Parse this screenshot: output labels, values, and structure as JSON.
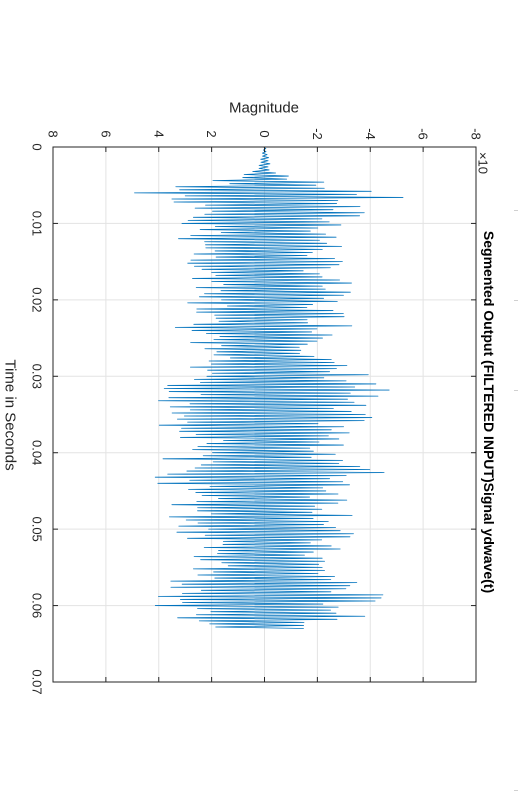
{
  "chart_data": {
    "type": "line",
    "orientation": "rotated-90-clockwise",
    "title": "Segmented Output (FILTERED INPUT)Signal ydwave(t)",
    "xlabel": "Time in Seconds",
    "ylabel": "Magnitude",
    "exponent_label": "×10",
    "xlim": [
      0,
      0.07
    ],
    "ylim": [
      -8,
      8
    ],
    "xticks": [
      "0",
      "0.01",
      "0.02",
      "0.03",
      "0.04",
      "0.05",
      "0.06",
      "0.07"
    ],
    "yticks": [
      "-8",
      "-6",
      "-4",
      "-2",
      "0",
      "2",
      "4",
      "6",
      "8"
    ],
    "grid": true,
    "legend": "none",
    "series": [
      {
        "color": "#0072BD",
        "t_start": 0.0,
        "t_end": 0.063,
        "sample_step": 0.0002,
        "peak_envelope": [
          {
            "t": 0.0,
            "v": 0.05
          },
          {
            "t": 0.003,
            "v": 0.3
          },
          {
            "t": 0.004,
            "v": 1.5
          },
          {
            "t": 0.005,
            "v": 2.8
          },
          {
            "t": 0.006,
            "v": 6.0
          },
          {
            "t": 0.0075,
            "v": 4.2
          },
          {
            "t": 0.01,
            "v": 3.6
          },
          {
            "t": 0.013,
            "v": 3.2
          },
          {
            "t": 0.015,
            "v": 3.0
          },
          {
            "t": 0.018,
            "v": 3.4
          },
          {
            "t": 0.021,
            "v": 3.0
          },
          {
            "t": 0.024,
            "v": 3.8
          },
          {
            "t": 0.027,
            "v": 2.6
          },
          {
            "t": 0.029,
            "v": 3.4
          },
          {
            "t": 0.031,
            "v": 5.4
          },
          {
            "t": 0.034,
            "v": 3.8
          },
          {
            "t": 0.036,
            "v": 4.2
          },
          {
            "t": 0.039,
            "v": 3.0
          },
          {
            "t": 0.0425,
            "v": 4.8
          },
          {
            "t": 0.046,
            "v": 3.6
          },
          {
            "t": 0.049,
            "v": 4.0
          },
          {
            "t": 0.052,
            "v": 3.0
          },
          {
            "t": 0.055,
            "v": 2.6
          },
          {
            "t": 0.058,
            "v": 4.8
          },
          {
            "t": 0.061,
            "v": 4.2
          },
          {
            "t": 0.063,
            "v": 2.4
          }
        ]
      }
    ]
  }
}
